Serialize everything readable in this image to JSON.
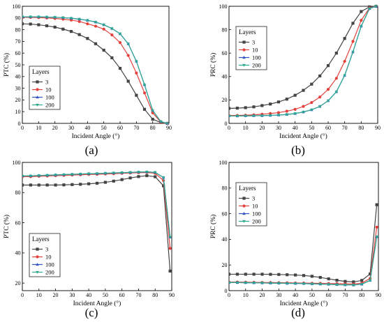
{
  "figure": {
    "panel_labels": [
      "(a)",
      "(b)",
      "(c)",
      "(d)"
    ]
  },
  "chart_data": [
    {
      "id": "a",
      "type": "line",
      "xlabel": "Incident Angle (°)",
      "ylabel": "PTC (%)",
      "xlim": [
        0,
        90
      ],
      "ylim": [
        0,
        100
      ],
      "xticks": [
        "0",
        "10",
        "20",
        "30",
        "40",
        "50",
        "60",
        "70",
        "80",
        "90"
      ],
      "yticks": [
        "0",
        "10",
        "20",
        "30",
        "40",
        "50",
        "60",
        "70",
        "80",
        "90",
        "100"
      ],
      "grid": false,
      "legend": {
        "title": "Layers",
        "position": "bottom-left",
        "entries": [
          "3",
          "10",
          "100",
          "200"
        ]
      },
      "series": [
        {
          "name": "3",
          "color": "#444444",
          "marker": "square",
          "x": [
            0,
            5,
            10,
            15,
            20,
            25,
            30,
            35,
            40,
            45,
            50,
            55,
            60,
            65,
            70,
            75,
            80,
            85,
            89
          ],
          "y": [
            85,
            84.8,
            84.2,
            83.3,
            82.2,
            80.5,
            78.5,
            75.8,
            72.5,
            68,
            62.5,
            56,
            47,
            36,
            24,
            12,
            3.5,
            0.8,
            0
          ]
        },
        {
          "name": "10",
          "color": "#e5413c",
          "marker": "circle",
          "x": [
            0,
            5,
            10,
            15,
            20,
            25,
            30,
            35,
            40,
            45,
            50,
            55,
            60,
            65,
            70,
            75,
            80,
            85,
            89
          ],
          "y": [
            90.5,
            90.5,
            90.3,
            90,
            89.6,
            89,
            88.2,
            87,
            85,
            83,
            80.5,
            75.5,
            69,
            58,
            43,
            26,
            9,
            1,
            0
          ]
        },
        {
          "name": "100",
          "color": "#2f52c5",
          "marker": "triangle-up",
          "x": [
            0,
            5,
            10,
            15,
            20,
            25,
            30,
            35,
            40,
            45,
            50,
            55,
            60,
            65,
            70,
            75,
            80,
            85,
            89
          ],
          "y": [
            91,
            91,
            91,
            90.8,
            90.6,
            90.3,
            89.8,
            89,
            88,
            86.5,
            84.2,
            81,
            76.5,
            68,
            53,
            33,
            11,
            1.5,
            0
          ]
        },
        {
          "name": "200",
          "color": "#2ca98f",
          "marker": "triangle-down",
          "x": [
            0,
            5,
            10,
            15,
            20,
            25,
            30,
            35,
            40,
            45,
            50,
            55,
            60,
            65,
            70,
            75,
            80,
            85,
            89
          ],
          "y": [
            91,
            91,
            91,
            90.8,
            90.6,
            90.3,
            89.8,
            89,
            88,
            86.5,
            84.2,
            81,
            76.5,
            68,
            53,
            33,
            11,
            1.5,
            0
          ]
        }
      ]
    },
    {
      "id": "b",
      "type": "line",
      "xlabel": "Incident Angle (°)",
      "ylabel": "PRC (%)",
      "xlim": [
        0,
        90
      ],
      "ylim": [
        0,
        100
      ],
      "xticks": [
        "0",
        "10",
        "20",
        "30",
        "40",
        "50",
        "60",
        "70",
        "80",
        "90"
      ],
      "yticks": [
        "0",
        "20",
        "40",
        "60",
        "80",
        "100"
      ],
      "grid": false,
      "legend": {
        "title": "Layers",
        "position": "top-left",
        "entries": [
          "3",
          "10",
          "100",
          "200"
        ]
      },
      "series": [
        {
          "name": "3",
          "color": "#444444",
          "marker": "square",
          "x": [
            0,
            5,
            10,
            15,
            20,
            25,
            30,
            35,
            40,
            45,
            50,
            55,
            60,
            65,
            70,
            75,
            80,
            85,
            89
          ],
          "y": [
            12.8,
            13,
            13.4,
            14.1,
            15.2,
            16.5,
            18.3,
            20.7,
            24,
            28.2,
            33.5,
            40.5,
            49.3,
            60,
            72.5,
            85.5,
            95.5,
            99.5,
            100
          ]
        },
        {
          "name": "10",
          "color": "#e5413c",
          "marker": "circle",
          "x": [
            0,
            5,
            10,
            15,
            20,
            25,
            30,
            35,
            40,
            45,
            50,
            55,
            60,
            65,
            70,
            75,
            80,
            85,
            89
          ],
          "y": [
            6.7,
            6.8,
            7,
            7.3,
            7.8,
            8.4,
            9.2,
            10.4,
            12,
            14.5,
            17.8,
            22.5,
            29,
            38.5,
            53,
            70,
            88,
            98.5,
            100
          ]
        },
        {
          "name": "100",
          "color": "#2f52c5",
          "marker": "triangle-up",
          "x": [
            0,
            5,
            10,
            15,
            20,
            25,
            30,
            35,
            40,
            45,
            50,
            55,
            60,
            65,
            70,
            75,
            80,
            85,
            89
          ],
          "y": [
            6.3,
            6.3,
            6.4,
            6.5,
            6.6,
            6.8,
            7.1,
            7.6,
            8.4,
            9.7,
            11.6,
            14.5,
            19.3,
            27,
            41,
            61,
            83,
            98,
            100
          ]
        },
        {
          "name": "200",
          "color": "#2ca98f",
          "marker": "triangle-down",
          "x": [
            0,
            5,
            10,
            15,
            20,
            25,
            30,
            35,
            40,
            45,
            50,
            55,
            60,
            65,
            70,
            75,
            80,
            85,
            89
          ],
          "y": [
            6.3,
            6.3,
            6.4,
            6.5,
            6.6,
            6.8,
            7.1,
            7.6,
            8.4,
            9.7,
            11.6,
            14.5,
            19.3,
            27,
            41,
            61,
            83,
            98,
            100
          ]
        }
      ]
    },
    {
      "id": "c",
      "type": "line",
      "xlabel": "Incident Angle (°)",
      "ylabel": "PTC (%)",
      "xlim": [
        0,
        90
      ],
      "ylim": [
        15,
        100
      ],
      "xticks": [
        "0",
        "10",
        "20",
        "30",
        "40",
        "50",
        "60",
        "70",
        "80",
        "90"
      ],
      "yticks": [
        "20",
        "40",
        "60",
        "80",
        "100"
      ],
      "grid": false,
      "legend": {
        "title": "Layers",
        "position": "bottom-left",
        "entries": [
          "3",
          "10",
          "100",
          "200"
        ]
      },
      "series": [
        {
          "name": "3",
          "color": "#444444",
          "marker": "square",
          "x": [
            0,
            5,
            10,
            15,
            20,
            25,
            30,
            35,
            40,
            45,
            50,
            55,
            60,
            65,
            70,
            75,
            80,
            85,
            89
          ],
          "y": [
            85,
            85,
            85,
            85,
            85,
            85.1,
            85.3,
            85.5,
            85.8,
            86.2,
            86.8,
            87.6,
            88.6,
            89.7,
            90.6,
            91.2,
            90.5,
            84.5,
            28
          ]
        },
        {
          "name": "10",
          "color": "#e5413c",
          "marker": "circle",
          "x": [
            0,
            5,
            10,
            15,
            20,
            25,
            30,
            35,
            40,
            45,
            50,
            55,
            60,
            65,
            70,
            75,
            80,
            85,
            89
          ],
          "y": [
            90.5,
            90.6,
            90.8,
            91,
            91.2,
            91.4,
            91.6,
            91.8,
            92,
            92.1,
            92.3,
            92.5,
            92.8,
            93,
            93.2,
            93.3,
            92.8,
            88,
            43
          ]
        },
        {
          "name": "100",
          "color": "#2f52c5",
          "marker": "triangle-up",
          "x": [
            0,
            5,
            10,
            15,
            20,
            25,
            30,
            35,
            40,
            45,
            50,
            55,
            60,
            65,
            70,
            75,
            80,
            85,
            89
          ],
          "y": [
            91,
            91.1,
            91.3,
            91.5,
            91.7,
            91.9,
            92.1,
            92.3,
            92.5,
            92.6,
            92.8,
            93,
            93.2,
            93.4,
            93.6,
            93.7,
            93.4,
            90,
            50.5
          ]
        },
        {
          "name": "200",
          "color": "#2ca98f",
          "marker": "triangle-down",
          "x": [
            0,
            5,
            10,
            15,
            20,
            25,
            30,
            35,
            40,
            45,
            50,
            55,
            60,
            65,
            70,
            75,
            80,
            85,
            89
          ],
          "y": [
            91,
            91.1,
            91.3,
            91.5,
            91.7,
            91.9,
            92.1,
            92.3,
            92.5,
            92.6,
            92.8,
            93,
            93.2,
            93.4,
            93.6,
            93.7,
            93.4,
            90,
            50.5
          ]
        }
      ]
    },
    {
      "id": "d",
      "type": "line",
      "xlabel": "Incident Angle (°)",
      "ylabel": "PRC (%)",
      "xlim": [
        0,
        90
      ],
      "ylim": [
        0,
        100
      ],
      "xticks": [
        "0",
        "10",
        "20",
        "30",
        "40",
        "50",
        "60",
        "70",
        "80",
        "90"
      ],
      "yticks": [
        "0",
        "20",
        "40",
        "60",
        "80",
        "100"
      ],
      "grid": false,
      "legend": {
        "title": "Layers",
        "position": "top-left",
        "entries": [
          "3",
          "10",
          "100",
          "200"
        ]
      },
      "series": [
        {
          "name": "3",
          "color": "#444444",
          "marker": "square",
          "x": [
            0,
            5,
            10,
            15,
            20,
            25,
            30,
            35,
            40,
            45,
            50,
            55,
            60,
            65,
            70,
            75,
            80,
            85,
            89
          ],
          "y": [
            12.8,
            12.8,
            12.8,
            12.8,
            12.8,
            12.7,
            12.6,
            12.4,
            12.2,
            11.8,
            11.2,
            10.3,
            9.2,
            8.1,
            7.2,
            6.8,
            8,
            13,
            67
          ]
        },
        {
          "name": "10",
          "color": "#e5413c",
          "marker": "circle",
          "x": [
            0,
            5,
            10,
            15,
            20,
            25,
            30,
            35,
            40,
            45,
            50,
            55,
            60,
            65,
            70,
            75,
            80,
            85,
            89
          ],
          "y": [
            6.7,
            6.7,
            6.6,
            6.5,
            6.4,
            6.3,
            6.2,
            6.1,
            6,
            5.9,
            5.8,
            5.7,
            5.6,
            5.5,
            5.3,
            5.2,
            5.8,
            9.5,
            49.5
          ]
        },
        {
          "name": "100",
          "color": "#2f52c5",
          "marker": "triangle-up",
          "x": [
            0,
            5,
            10,
            15,
            20,
            25,
            30,
            35,
            40,
            45,
            50,
            55,
            60,
            65,
            70,
            75,
            80,
            85,
            89
          ],
          "y": [
            6.3,
            6.3,
            6.2,
            6.1,
            6,
            5.9,
            5.8,
            5.7,
            5.6,
            5.5,
            5.3,
            5.1,
            4.9,
            4.7,
            4.5,
            4.4,
            5,
            8,
            42
          ]
        },
        {
          "name": "200",
          "color": "#2ca98f",
          "marker": "triangle-down",
          "x": [
            0,
            5,
            10,
            15,
            20,
            25,
            30,
            35,
            40,
            45,
            50,
            55,
            60,
            65,
            70,
            75,
            80,
            85,
            89
          ],
          "y": [
            6.3,
            6.3,
            6.2,
            6.1,
            6,
            5.9,
            5.8,
            5.7,
            5.6,
            5.5,
            5.3,
            5.1,
            4.9,
            4.7,
            4.5,
            4.4,
            5,
            8,
            42
          ]
        }
      ]
    }
  ]
}
